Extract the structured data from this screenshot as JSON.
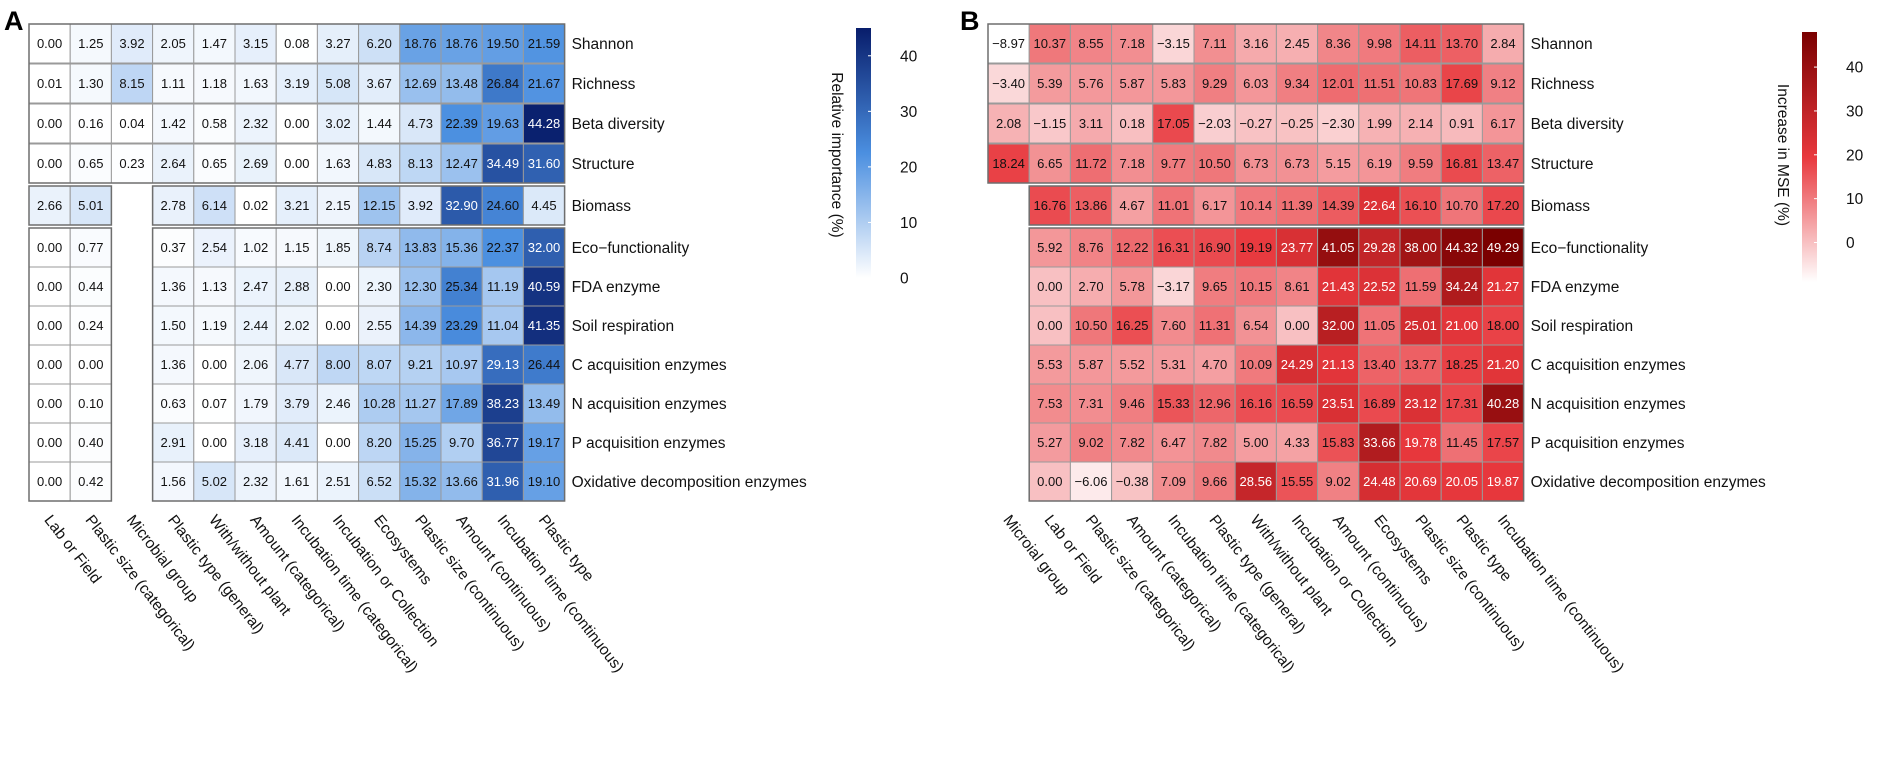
{
  "chart_data": [
    {
      "type": "heatmap",
      "panel_label": "A",
      "legend_title": "Relative importance (%)",
      "legend_ticks": [
        "0",
        "10",
        "20",
        "30",
        "40"
      ],
      "legend_range": [
        0,
        45
      ],
      "color_scale": {
        "low": "#ffffff",
        "mid": "#4b8fe0",
        "high": "#081d6b"
      },
      "rows": [
        "Shannon",
        "Richness",
        "Beta diversity",
        "Structure",
        "Biomass",
        "Eco−functionality",
        "FDA enzyme",
        "Soil respiration",
        "C acquisition enzymes",
        "N acquisition enzymes",
        "P acquisition enzymes",
        "Oxidative decomposition enzymes"
      ],
      "columns": [
        "Lab or Field",
        "Plastic size (categorical)",
        "Microbial group",
        "Plastic type (general)",
        "With/without plant",
        "Amount (categorical)",
        "Incubation time (categorical)",
        "Incubation or Collection",
        "Ecosystems",
        "Plastic size (continuous)",
        "Amount (continuous)",
        "Incubation time (continuous)",
        "Plastic type"
      ],
      "values": [
        [
          0.0,
          1.25,
          3.92,
          2.05,
          1.47,
          3.15,
          0.08,
          3.27,
          6.2,
          18.76,
          18.76,
          19.5,
          21.59
        ],
        [
          0.01,
          1.3,
          8.15,
          1.11,
          1.18,
          1.63,
          3.19,
          5.08,
          3.67,
          12.69,
          13.48,
          26.84,
          21.67
        ],
        [
          0.0,
          0.16,
          0.04,
          1.42,
          0.58,
          2.32,
          0.0,
          3.02,
          1.44,
          4.73,
          22.39,
          19.63,
          44.28
        ],
        [
          0.0,
          0.65,
          0.23,
          2.64,
          0.65,
          2.69,
          0.0,
          1.63,
          4.83,
          8.13,
          12.47,
          34.49,
          31.6
        ],
        [
          2.66,
          5.01,
          null,
          2.78,
          6.14,
          0.02,
          3.21,
          2.15,
          12.15,
          3.92,
          32.9,
          24.6,
          4.45
        ],
        [
          0.0,
          0.77,
          null,
          0.37,
          2.54,
          1.02,
          1.15,
          1.85,
          8.74,
          13.83,
          15.36,
          22.37,
          32.0
        ],
        [
          0.0,
          0.44,
          null,
          1.36,
          1.13,
          2.47,
          2.88,
          0.0,
          2.3,
          12.3,
          25.34,
          11.19,
          40.59
        ],
        [
          0.0,
          0.24,
          null,
          1.5,
          1.19,
          2.44,
          2.02,
          0.0,
          2.55,
          14.39,
          23.29,
          11.04,
          41.35
        ],
        [
          0.0,
          0.0,
          null,
          1.36,
          0.0,
          2.06,
          4.77,
          8.0,
          8.07,
          9.21,
          10.97,
          29.13,
          26.44
        ],
        [
          0.0,
          0.1,
          null,
          0.63,
          0.07,
          1.79,
          3.79,
          2.46,
          10.28,
          11.27,
          17.89,
          38.23,
          13.49
        ],
        [
          0.0,
          0.4,
          null,
          2.91,
          0.0,
          3.18,
          4.41,
          0.0,
          8.2,
          15.25,
          9.7,
          36.77,
          19.17
        ],
        [
          0.0,
          0.42,
          null,
          1.56,
          5.02,
          2.32,
          1.61,
          2.51,
          6.52,
          15.32,
          13.66,
          31.96,
          19.1
        ]
      ]
    },
    {
      "type": "heatmap",
      "panel_label": "B",
      "legend_title": "Increase in MSE (%)",
      "legend_ticks": [
        "0",
        "10",
        "20",
        "30",
        "40"
      ],
      "legend_range": [
        -9,
        48
      ],
      "color_scale": {
        "low": "#ffffff",
        "mid": "#e8383d",
        "high": "#7a0000"
      },
      "rows": [
        "Shannon",
        "Richness",
        "Beta diversity",
        "Structure",
        "Biomass",
        "Eco−functionality",
        "FDA enzyme",
        "Soil respiration",
        "C acquisition enzymes",
        "N acquisition enzymes",
        "P acquisition enzymes",
        "Oxidative decomposition enzymes"
      ],
      "columns": [
        "Microial group",
        "Lab or Field",
        "Plastic size (categorical)",
        "Amount (categorical)",
        "Incubation time (categorical)",
        "Plastic type (general)",
        "With/without plant",
        "Incubation or Collection",
        "Amount (continuous)",
        "Ecosystems",
        "Plastic size (continuous)",
        "Plastic type",
        "Incubation time (continuous)"
      ],
      "values": [
        [
          -8.97,
          10.37,
          8.55,
          7.18,
          -3.15,
          7.11,
          3.16,
          2.45,
          8.36,
          9.98,
          14.11,
          13.7,
          2.84
        ],
        [
          -3.4,
          5.39,
          5.76,
          5.87,
          5.83,
          9.29,
          6.03,
          9.34,
          12.01,
          11.51,
          10.83,
          17.69,
          9.12
        ],
        [
          2.08,
          -1.15,
          3.11,
          0.18,
          17.05,
          -2.03,
          -0.27,
          -0.25,
          -2.3,
          1.99,
          2.14,
          0.91,
          6.17
        ],
        [
          18.24,
          6.65,
          11.72,
          7.18,
          9.77,
          10.5,
          6.73,
          6.73,
          5.15,
          6.19,
          9.59,
          16.81,
          13.47
        ],
        [
          null,
          16.76,
          13.86,
          4.67,
          11.01,
          6.17,
          10.14,
          11.39,
          14.39,
          22.64,
          16.1,
          10.7,
          17.2
        ],
        [
          null,
          5.92,
          8.76,
          12.22,
          16.31,
          16.9,
          19.19,
          23.77,
          41.05,
          29.28,
          38.0,
          44.32,
          49.29
        ],
        [
          null,
          0.0,
          2.7,
          5.78,
          -3.17,
          9.65,
          10.15,
          8.61,
          21.43,
          22.52,
          11.59,
          34.24,
          21.27
        ],
        [
          null,
          0.0,
          10.5,
          16.25,
          7.6,
          11.31,
          6.54,
          0.0,
          32.0,
          11.05,
          25.01,
          21.0,
          18.0
        ],
        [
          null,
          5.53,
          5.87,
          5.52,
          5.31,
          4.7,
          10.09,
          24.29,
          21.13,
          13.4,
          13.77,
          18.25,
          21.2
        ],
        [
          null,
          7.53,
          7.31,
          9.46,
          15.33,
          12.96,
          16.16,
          16.59,
          23.51,
          16.89,
          23.12,
          17.31,
          40.28
        ],
        [
          null,
          5.27,
          9.02,
          7.82,
          6.47,
          7.82,
          5.0,
          4.33,
          15.83,
          33.66,
          19.78,
          11.45,
          17.57
        ],
        [
          null,
          0.0,
          -6.06,
          -0.38,
          7.09,
          9.66,
          28.56,
          15.55,
          9.02,
          24.48,
          20.69,
          20.05,
          19.87
        ]
      ]
    }
  ]
}
